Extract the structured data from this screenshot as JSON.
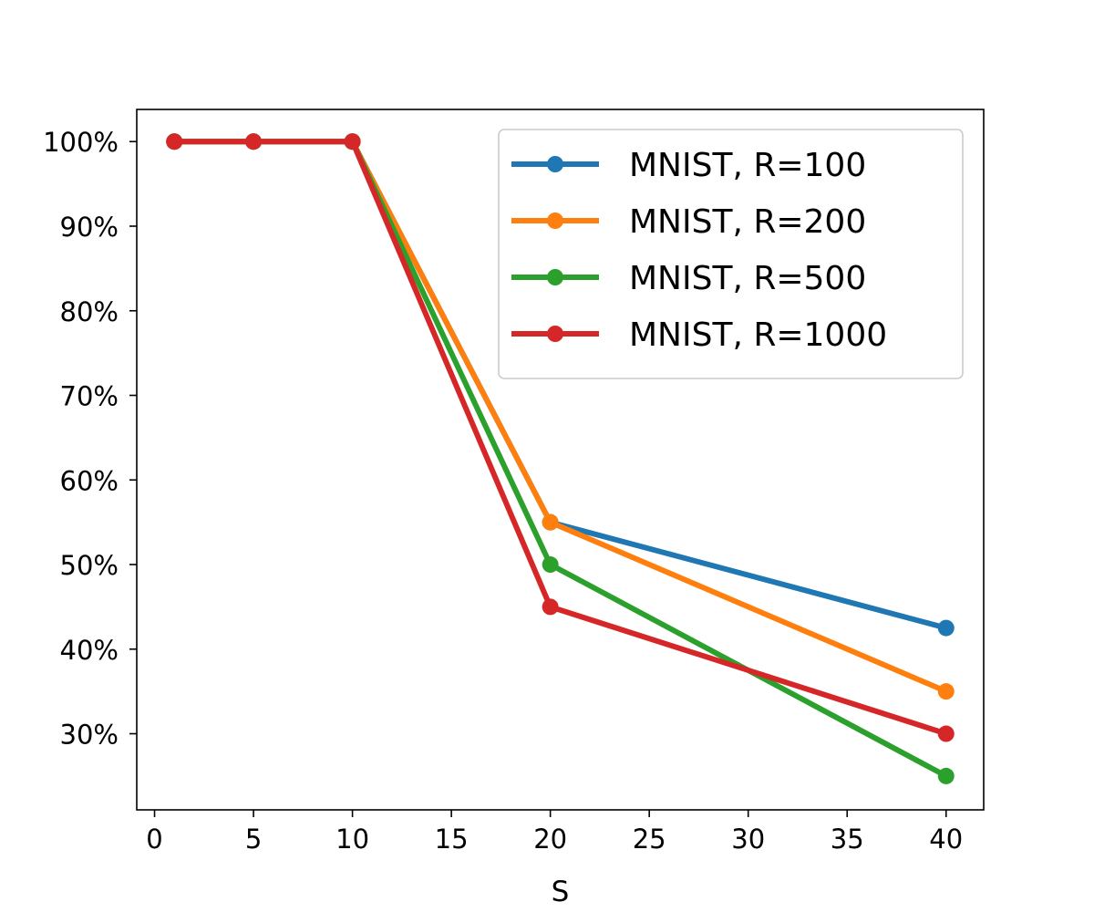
{
  "chart_data": {
    "type": "line",
    "title": "",
    "xlabel": "S",
    "ylabel": "",
    "x": [
      1,
      5,
      10,
      20,
      40
    ],
    "xlim": [
      -0.9,
      41.9
    ],
    "ylim": [
      21.0,
      103.8
    ],
    "xticks": [
      0,
      5,
      10,
      15,
      20,
      25,
      30,
      35,
      40
    ],
    "yticks": [
      30,
      40,
      50,
      60,
      70,
      80,
      90,
      100
    ],
    "ytick_labels": [
      "30%",
      "40%",
      "50%",
      "60%",
      "70%",
      "80%",
      "90%",
      "100%"
    ],
    "grid": false,
    "legend_position": "upper-right",
    "series": [
      {
        "name": "MNIST, R=100",
        "color": "#1f77b4",
        "values": [
          100,
          100,
          100,
          55,
          42.5
        ]
      },
      {
        "name": "MNIST, R=200",
        "color": "#ff7f0e",
        "values": [
          100,
          100,
          100,
          55,
          35
        ]
      },
      {
        "name": "MNIST, R=500",
        "color": "#2ca02c",
        "values": [
          100,
          100,
          100,
          50,
          25
        ]
      },
      {
        "name": "MNIST, R=1000",
        "color": "#d62728",
        "values": [
          100,
          100,
          100,
          45,
          30
        ]
      }
    ]
  }
}
